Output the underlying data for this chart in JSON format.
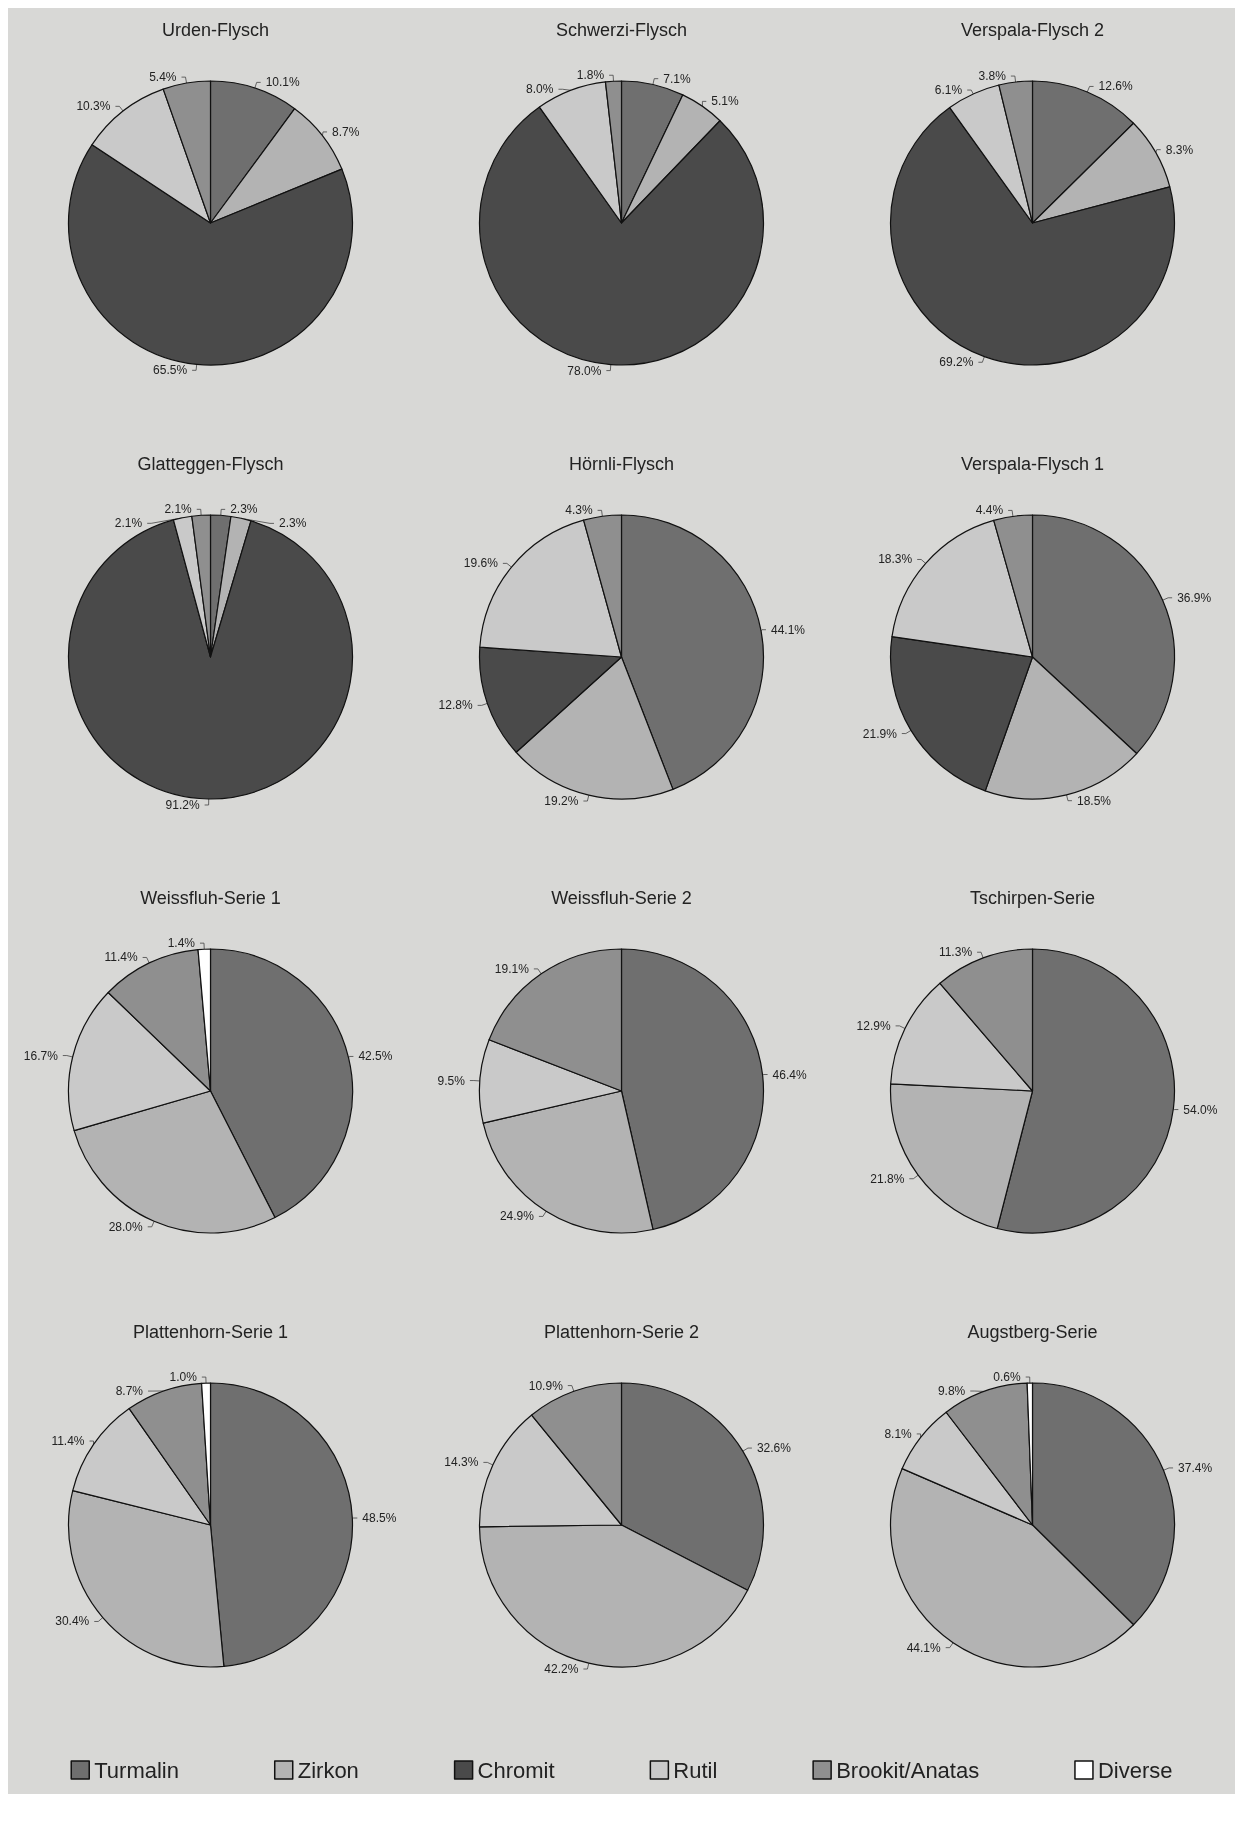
{
  "chart_data": [
    {
      "type": "pie",
      "title": "Urden-Flysch",
      "categories": [
        "Turmalin",
        "Zirkon",
        "Chromit",
        "Rutil",
        "Brookit/Anatas",
        "Diverse"
      ],
      "values": [
        10.1,
        8.7,
        65.5,
        10.3,
        5.4,
        null
      ],
      "value_labels": [
        "10.1%",
        "8.7%",
        "65.5%",
        "10.3%",
        "5.4%",
        null
      ],
      "colors": [
        "#6f6f6f",
        "#b3b3b3",
        "#4a4a4a",
        "#c9c9c9",
        "#8f8f8f",
        "#ffffff"
      ],
      "legend": "bottom"
    },
    {
      "type": "pie",
      "title": "Schwerzi-Flysch",
      "categories": [
        null,
        null,
        null,
        null,
        null,
        null
      ],
      "values": [
        7.1,
        5.1,
        78.0,
        8.0,
        1.8,
        null
      ],
      "value_labels": [
        "7.1%",
        "5.1%",
        "78.0%",
        "8.0%",
        "1.8%",
        null
      ],
      "colors": [
        "#6f6f6f",
        "#b3b3b3",
        "#4a4a4a",
        "#c9c9c9",
        "#8f8f8f",
        "#ffffff"
      ]
    },
    {
      "type": "pie",
      "title": "Verspala-Flysch 2",
      "categories": [
        null,
        null,
        null,
        null,
        null,
        null
      ],
      "values": [
        12.6,
        8.3,
        69.2,
        6.1,
        3.8,
        null
      ],
      "value_labels": [
        "12.6%",
        "8.3%",
        "69.2%",
        "6.1%",
        "3.8%",
        null
      ],
      "colors": [
        "#6f6f6f",
        "#b3b3b3",
        "#4a4a4a",
        "#c9c9c9",
        "#8f8f8f",
        "#ffffff"
      ]
    },
    {
      "type": "pie",
      "title": "Glatteggen-Flysch",
      "categories": [
        null,
        null,
        null,
        null,
        null,
        null
      ],
      "values": [
        2.3,
        2.3,
        91.2,
        2.1,
        2.1,
        null
      ],
      "value_labels": [
        "2.3%",
        "2.3%",
        "91.2%",
        "2.1%",
        "2.1%",
        null
      ],
      "colors": [
        "#6f6f6f",
        "#b3b3b3",
        "#4a4a4a",
        "#c9c9c9",
        "#8f8f8f",
        "#ffffff"
      ]
    },
    {
      "type": "pie",
      "title": "Hörnli-Flysch",
      "categories": [
        null,
        null,
        null,
        null,
        null,
        null
      ],
      "values": [
        44.1,
        19.2,
        12.8,
        19.6,
        4.3,
        null
      ],
      "value_labels": [
        "44.1%",
        "19.2%",
        "12.8%",
        "19.6%",
        "4.3%",
        null
      ],
      "colors": [
        "#6f6f6f",
        "#b3b3b3",
        "#4a4a4a",
        "#c9c9c9",
        "#8f8f8f",
        "#ffffff"
      ]
    },
    {
      "type": "pie",
      "title": "Verspala-Flysch 1",
      "categories": [
        null,
        null,
        null,
        null,
        null,
        null
      ],
      "values": [
        36.9,
        18.5,
        21.9,
        18.3,
        4.4,
        null
      ],
      "value_labels": [
        "36.9%",
        "18.5%",
        "21.9%",
        "18.3%",
        "4.4%",
        null
      ],
      "colors": [
        "#6f6f6f",
        "#b3b3b3",
        "#4a4a4a",
        "#c9c9c9",
        "#8f8f8f",
        "#ffffff"
      ]
    },
    {
      "type": "pie",
      "title": "Weissfluh-Serie 1",
      "categories": [
        null,
        null,
        null,
        null,
        null,
        null
      ],
      "values": [
        42.5,
        28.0,
        null,
        16.7,
        11.4,
        1.4
      ],
      "value_labels": [
        "42.5%",
        "28.0%",
        null,
        "16.7%",
        "11.4%",
        "1.4%"
      ],
      "colors": [
        "#6f6f6f",
        "#b3b3b3",
        "#4a4a4a",
        "#c9c9c9",
        "#8f8f8f",
        "#ffffff"
      ]
    },
    {
      "type": "pie",
      "title": "Weissfluh-Serie 2",
      "categories": [
        null,
        null,
        null,
        null,
        null,
        null
      ],
      "values": [
        46.4,
        24.9,
        null,
        9.5,
        19.1,
        null
      ],
      "value_labels": [
        "46.4%",
        "24.9%",
        null,
        "9.5%",
        "19.1%",
        null
      ],
      "colors": [
        "#6f6f6f",
        "#b3b3b3",
        "#4a4a4a",
        "#c9c9c9",
        "#8f8f8f",
        "#ffffff"
      ]
    },
    {
      "type": "pie",
      "title": "Tschirpen-Serie",
      "categories": [
        null,
        null,
        null,
        null,
        null,
        null
      ],
      "values": [
        54.0,
        21.8,
        null,
        12.9,
        11.3,
        null
      ],
      "value_labels": [
        "54.0%",
        "21.8%",
        null,
        "12.9%",
        "11.3%",
        null
      ],
      "colors": [
        "#6f6f6f",
        "#b3b3b3",
        "#4a4a4a",
        "#c9c9c9",
        "#8f8f8f",
        "#ffffff"
      ]
    },
    {
      "type": "pie",
      "title": "Plattenhorn-Serie 1",
      "categories": [
        null,
        null,
        null,
        null,
        null,
        null
      ],
      "values": [
        48.5,
        30.4,
        null,
        11.4,
        8.7,
        1.0
      ],
      "value_labels": [
        "48.5%",
        "30.4%",
        null,
        "11.4%",
        "8.7%",
        "1.0%"
      ],
      "colors": [
        "#6f6f6f",
        "#b3b3b3",
        "#4a4a4a",
        "#c9c9c9",
        "#8f8f8f",
        "#ffffff"
      ]
    },
    {
      "type": "pie",
      "title": "Plattenhorn-Serie 2",
      "categories": [
        null,
        null,
        null,
        null,
        null,
        null
      ],
      "values": [
        32.6,
        42.2,
        null,
        14.3,
        10.9,
        null
      ],
      "value_labels": [
        "32.6%",
        "42.2%",
        null,
        "14.3%",
        "10.9%",
        null
      ],
      "colors": [
        "#6f6f6f",
        "#b3b3b3",
        "#4a4a4a",
        "#c9c9c9",
        "#8f8f8f",
        "#ffffff"
      ]
    },
    {
      "type": "pie",
      "title": "Augstberg-Serie",
      "categories": [
        null,
        null,
        null,
        null,
        null,
        null
      ],
      "values": [
        37.4,
        44.1,
        null,
        8.1,
        9.8,
        0.6
      ],
      "value_labels": [
        "37.4%",
        "44.1%",
        null,
        "8.1%",
        "9.8%",
        "0.6%"
      ],
      "colors": [
        "#6f6f6f",
        "#b3b3b3",
        "#4a4a4a",
        "#c9c9c9",
        "#8f8f8f",
        "#ffffff"
      ]
    }
  ]
}
